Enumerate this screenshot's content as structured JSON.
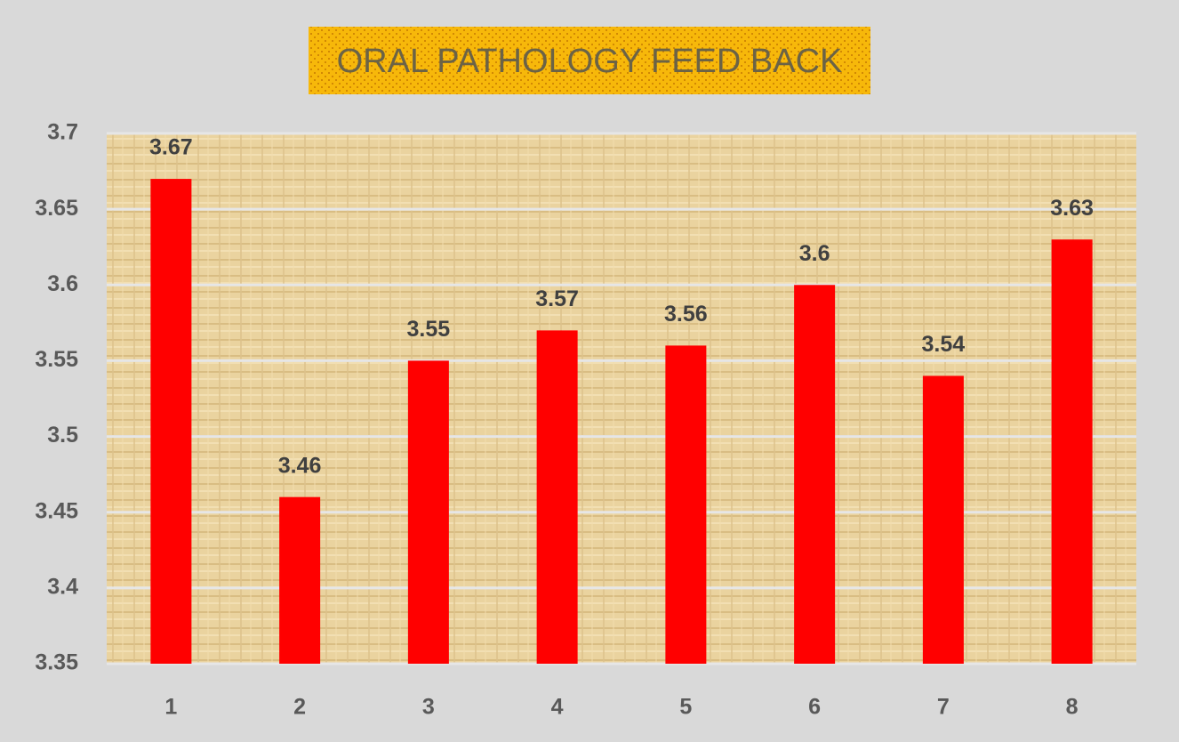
{
  "chart_data": {
    "type": "bar",
    "title": "ORAL PATHOLOGY FEED BACK",
    "categories": [
      "1",
      "2",
      "3",
      "4",
      "5",
      "6",
      "7",
      "8"
    ],
    "values": [
      3.67,
      3.46,
      3.55,
      3.57,
      3.56,
      3.6,
      3.54,
      3.63
    ],
    "color": "#ff0000",
    "ylim": [
      3.35,
      3.7
    ],
    "yticks": [
      3.35,
      3.4,
      3.45,
      3.5,
      3.55,
      3.6,
      3.65,
      3.7
    ],
    "grid": true
  }
}
